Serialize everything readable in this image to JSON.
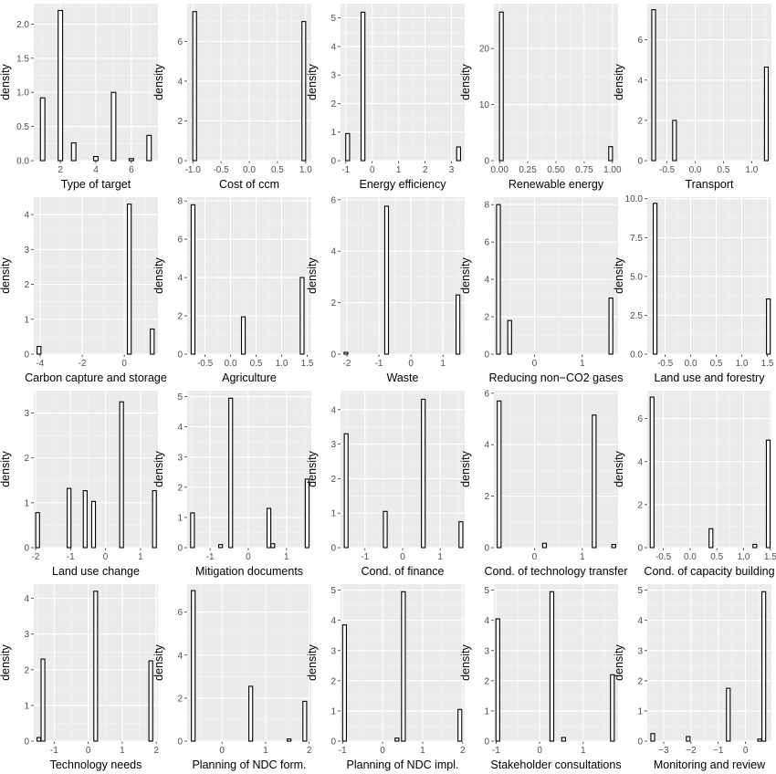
{
  "chart_data": [
    {
      "type": "bar",
      "xlabel": "Type of target",
      "ylabel": "density",
      "xlim": [
        0.5,
        7.5
      ],
      "ylim": [
        0,
        2.3
      ],
      "xticks": [
        2,
        4,
        6
      ],
      "xtick_labels": [
        "2",
        "4",
        "6"
      ],
      "yticks": [
        0,
        0.5,
        1,
        1.5,
        2
      ],
      "ytick_labels": [
        "0.0",
        "0.5",
        "1.0",
        "1.5",
        "2.0"
      ],
      "bar_width": 0.25,
      "x": [
        1,
        2,
        2.75,
        4,
        5,
        6,
        7
      ],
      "values": [
        0.92,
        2.2,
        0.26,
        0.06,
        1.0,
        0.03,
        0.37
      ]
    },
    {
      "type": "bar",
      "xlabel": "Cost of ccm",
      "ylabel": "density",
      "xlim": [
        -1.1,
        1.1
      ],
      "ylim": [
        0,
        7.9
      ],
      "xticks": [
        -1,
        -0.5,
        0,
        0.5,
        1
      ],
      "xtick_labels": [
        "-1.0",
        "-0.5",
        "0.0",
        "0.5",
        "1.0"
      ],
      "yticks": [
        0,
        2,
        4,
        6
      ],
      "ytick_labels": [
        "0",
        "2",
        "4",
        "6"
      ],
      "bar_width": 0.066,
      "x": [
        -0.967,
        0.967
      ],
      "values": [
        7.5,
        7.0
      ]
    },
    {
      "type": "bar",
      "xlabel": "Energy efficiency",
      "ylabel": "density",
      "xlim": [
        -1.2,
        3.5
      ],
      "ylim": [
        0,
        5.5
      ],
      "xticks": [
        -1,
        0,
        1,
        2,
        3
      ],
      "xtick_labels": [
        "-1",
        "0",
        "1",
        "2",
        "3"
      ],
      "yticks": [
        0,
        1,
        2,
        3,
        4,
        5
      ],
      "ytick_labels": [
        "0",
        "1",
        "2",
        "3",
        "4",
        "5"
      ],
      "bar_width": 0.145,
      "x": [
        -0.93,
        -0.35,
        3.27
      ],
      "values": [
        0.95,
        5.2,
        0.48
      ]
    },
    {
      "type": "bar",
      "xlabel": "Renewable energy",
      "ylabel": "density",
      "xlim": [
        -0.05,
        1.05
      ],
      "ylim": [
        0,
        28
      ],
      "xticks": [
        0,
        0.25,
        0.5,
        0.75,
        1
      ],
      "xtick_labels": [
        "0.00",
        "0.25",
        "0.50",
        "0.75",
        "1.00"
      ],
      "yticks": [
        0,
        10,
        20
      ],
      "ytick_labels": [
        "0",
        "10",
        "20"
      ],
      "bar_width": 0.033,
      "x": [
        0.016,
        0.984
      ],
      "values": [
        26.5,
        2.5
      ]
    },
    {
      "type": "bar",
      "xlabel": "Transport",
      "ylabel": "density",
      "xlim": [
        -0.85,
        1.35
      ],
      "ylim": [
        0,
        7.8
      ],
      "xticks": [
        -0.5,
        0,
        0.5,
        1
      ],
      "xtick_labels": [
        "-0.5",
        "0.0",
        "0.5",
        "1.0"
      ],
      "yticks": [
        0,
        2,
        4,
        6
      ],
      "ytick_labels": [
        "0",
        "2",
        "4",
        "6"
      ],
      "bar_width": 0.066,
      "x": [
        -0.737,
        -0.367,
        1.26
      ],
      "values": [
        7.5,
        2.0,
        4.65
      ]
    },
    {
      "type": "bar",
      "xlabel": "Carbon capture and storage",
      "ylabel": "density",
      "xlim": [
        -4.3,
        1.6
      ],
      "ylim": [
        0,
        4.5
      ],
      "xticks": [
        -4,
        -2,
        0
      ],
      "xtick_labels": [
        "-4",
        "-2",
        "0"
      ],
      "yticks": [
        0,
        1,
        2,
        3,
        4
      ],
      "ytick_labels": [
        "0",
        "1",
        "2",
        "3",
        "4"
      ],
      "bar_width": 0.18,
      "x": [
        -4.05,
        0.24,
        1.33
      ],
      "values": [
        0.22,
        4.3,
        0.72
      ]
    },
    {
      "type": "bar",
      "xlabel": "Agriculture",
      "ylabel": "density",
      "xlim": [
        -0.85,
        1.58
      ],
      "ylim": [
        0,
        8.2
      ],
      "xticks": [
        -0.5,
        0,
        0.5,
        1,
        1.5
      ],
      "xtick_labels": [
        "-0.5",
        "0.0",
        "0.5",
        "1.0",
        "1.5"
      ],
      "yticks": [
        0,
        2,
        4,
        6,
        8
      ],
      "ytick_labels": [
        "0",
        "2",
        "4",
        "6",
        "8"
      ],
      "bar_width": 0.073,
      "x": [
        -0.735,
        0.25,
        1.4
      ],
      "values": [
        7.8,
        1.95,
        4.0
      ]
    },
    {
      "type": "bar",
      "xlabel": "Waste",
      "ylabel": "density",
      "xlim": [
        -2.2,
        1.68
      ],
      "ylim": [
        0,
        6.1
      ],
      "xticks": [
        -2,
        -1,
        0,
        1
      ],
      "xtick_labels": [
        "-2",
        "-1",
        "0",
        "1"
      ],
      "yticks": [
        0,
        2,
        4,
        6
      ],
      "ytick_labels": [
        "0",
        "2",
        "4",
        "6"
      ],
      "bar_width": 0.117,
      "x": [
        -2.03,
        -0.76,
        1.47
      ],
      "values": [
        0.07,
        5.75,
        2.3
      ]
    },
    {
      "type": "bar",
      "xlabel": "Reducing non−CO2 gases",
      "ylabel": "density",
      "xlim": [
        -0.85,
        1.75
      ],
      "ylim": [
        0,
        8.4
      ],
      "xticks": [
        0,
        1
      ],
      "xtick_labels": [
        "0",
        "1"
      ],
      "yticks": [
        0,
        2,
        4,
        6,
        8
      ],
      "ytick_labels": [
        "0",
        "2",
        "4",
        "6",
        "8"
      ],
      "bar_width": 0.079,
      "x": [
        -0.755,
        -0.52,
        1.6
      ],
      "values": [
        8.0,
        1.8,
        3.0
      ]
    },
    {
      "type": "bar",
      "xlabel": "Land use and forestry",
      "ylabel": "density",
      "xlim": [
        -0.85,
        1.58
      ],
      "ylim": [
        0,
        10.1
      ],
      "xticks": [
        -0.5,
        0,
        0.5,
        1,
        1.5
      ],
      "xtick_labels": [
        "-0.5",
        "0.0",
        "0.5",
        "1.0",
        "1.5"
      ],
      "yticks": [
        0,
        2.5,
        5,
        7.5,
        10
      ],
      "ytick_labels": [
        "0.0",
        "2.5",
        "5.0",
        "7.5",
        "10.0"
      ],
      "bar_width": 0.073,
      "x": [
        -0.697,
        1.52
      ],
      "values": [
        9.7,
        3.55
      ]
    },
    {
      "type": "bar",
      "xlabel": "Land use change",
      "ylabel": "density",
      "xlim": [
        -2.05,
        1.5
      ],
      "ylim": [
        0,
        3.5
      ],
      "xticks": [
        -2,
        -1,
        0,
        1
      ],
      "xtick_labels": [
        "-2",
        "-1",
        "0",
        "1"
      ],
      "yticks": [
        0,
        1,
        2,
        3
      ],
      "ytick_labels": [
        "0",
        "1",
        "2",
        "3"
      ],
      "bar_width": 0.107,
      "x": [
        -1.94,
        -1.04,
        -0.58,
        -0.34,
        0.46,
        1.4
      ],
      "values": [
        0.78,
        1.32,
        1.27,
        1.03,
        3.25,
        1.27
      ]
    },
    {
      "type": "bar",
      "xlabel": "Mitigation documents",
      "ylabel": "density",
      "xlim": [
        -1.6,
        1.65
      ],
      "ylim": [
        0,
        5.2
      ],
      "xticks": [
        -1,
        0,
        1
      ],
      "xtick_labels": [
        "-1",
        "0",
        "1"
      ],
      "yticks": [
        0,
        1,
        2,
        3,
        4,
        5
      ],
      "ytick_labels": [
        "0",
        "1",
        "2",
        "3",
        "4",
        "5"
      ],
      "bar_width": 0.098,
      "x": [
        -1.46,
        -0.725,
        -0.46,
        0.54,
        0.64,
        1.54
      ],
      "values": [
        1.15,
        0.1,
        4.95,
        1.3,
        0.13,
        2.27
      ]
    },
    {
      "type": "bar",
      "xlabel": "Cond. of finance",
      "ylabel": "density",
      "xlim": [
        -1.65,
        1.65
      ],
      "ylim": [
        0,
        4.55
      ],
      "xticks": [
        -1,
        0,
        1
      ],
      "xtick_labels": [
        "-1",
        "0",
        "1"
      ],
      "yticks": [
        0,
        1,
        2,
        3,
        4
      ],
      "ytick_labels": [
        "0",
        "1",
        "2",
        "3",
        "4"
      ],
      "bar_width": 0.1,
      "x": [
        -1.5,
        -0.46,
        0.55,
        1.55
      ],
      "values": [
        3.3,
        1.05,
        4.3,
        0.75
      ]
    },
    {
      "type": "bar",
      "xlabel": "Cond. of technology transfer",
      "ylabel": "density",
      "xlim": [
        -0.85,
        1.75
      ],
      "ylim": [
        0,
        6.1
      ],
      "xticks": [
        0,
        1
      ],
      "xtick_labels": [
        "0",
        "1"
      ],
      "yticks": [
        0,
        2,
        4,
        6
      ],
      "ytick_labels": [
        "0",
        "2",
        "4",
        "6"
      ],
      "bar_width": 0.079,
      "x": [
        -0.74,
        0.21,
        1.25,
        1.66
      ],
      "values": [
        5.7,
        0.17,
        5.15,
        0.12
      ]
    },
    {
      "type": "bar",
      "xlabel": "Cond. of capacity building",
      "ylabel": "density",
      "xlim": [
        -0.8,
        1.52
      ],
      "ylim": [
        0,
        7.3
      ],
      "xticks": [
        -0.5,
        0,
        0.5,
        1,
        1.5
      ],
      "xtick_labels": [
        "-0.5",
        "0.0",
        "0.5",
        "1.0",
        "1.5"
      ],
      "yticks": [
        0,
        2,
        4,
        6
      ],
      "ytick_labels": [
        "0",
        "2",
        "4",
        "6"
      ],
      "bar_width": 0.07,
      "x": [
        -0.71,
        0.39,
        1.21,
        1.46
      ],
      "values": [
        7.0,
        0.88,
        0.15,
        5.0
      ]
    },
    {
      "type": "bar",
      "xlabel": "Technology needs",
      "ylabel": "density",
      "xlim": [
        -1.6,
        2.05
      ],
      "ylim": [
        0,
        4.4
      ],
      "xticks": [
        -1,
        0,
        1,
        2
      ],
      "xtick_labels": [
        "-1",
        "0",
        "1",
        "2"
      ],
      "yticks": [
        0,
        1,
        2,
        3,
        4
      ],
      "ytick_labels": [
        "0",
        "1",
        "2",
        "3",
        "4"
      ],
      "bar_width": 0.11,
      "x": [
        -1.45,
        -1.33,
        0.22,
        1.84
      ],
      "values": [
        0.1,
        2.3,
        4.2,
        2.25
      ]
    },
    {
      "type": "bar",
      "xlabel": "Planning of NDC form.",
      "ylabel": "density",
      "xlim": [
        -0.8,
        2.05
      ],
      "ylim": [
        0,
        7.3
      ],
      "xticks": [
        0,
        1,
        2
      ],
      "xtick_labels": [
        "0",
        "1",
        "2"
      ],
      "yticks": [
        0,
        2,
        4,
        6
      ],
      "ytick_labels": [
        "0",
        "2",
        "4",
        "6"
      ],
      "bar_width": 0.086,
      "x": [
        -0.66,
        0.66,
        1.54,
        1.9
      ],
      "values": [
        7.0,
        2.55,
        0.1,
        1.85
      ]
    },
    {
      "type": "bar",
      "xlabel": "Planning of NDC impl.",
      "ylabel": "density",
      "xlim": [
        -1.05,
        2.05
      ],
      "ylim": [
        0,
        5.2
      ],
      "xticks": [
        -1,
        0,
        1,
        2
      ],
      "xtick_labels": [
        "-1",
        "0",
        "1",
        "2"
      ],
      "yticks": [
        0,
        1,
        2,
        3,
        4,
        5
      ],
      "ytick_labels": [
        "0",
        "1",
        "2",
        "3",
        "4",
        "5"
      ],
      "bar_width": 0.094,
      "x": [
        -0.95,
        0.36,
        0.52,
        1.93
      ],
      "values": [
        3.85,
        0.1,
        4.95,
        1.05
      ]
    },
    {
      "type": "bar",
      "xlabel": "Stakeholder consultations",
      "ylabel": "density",
      "xlim": [
        -1.05,
        1.8
      ],
      "ylim": [
        0,
        5.2
      ],
      "xticks": [
        -1,
        0,
        1
      ],
      "xtick_labels": [
        "-1",
        "0",
        "1"
      ],
      "yticks": [
        0,
        1,
        2,
        3,
        4,
        5
      ],
      "ytick_labels": [
        "0",
        "1",
        "2",
        "3",
        "4",
        "5"
      ],
      "bar_width": 0.086,
      "x": [
        -0.96,
        0.28,
        0.55,
        1.67
      ],
      "values": [
        4.05,
        4.95,
        0.12,
        2.2
      ]
    },
    {
      "type": "bar",
      "xlabel": "Monitoring and review",
      "ylabel": "density",
      "xlim": [
        -3.6,
        0.95
      ],
      "ylim": [
        0,
        5.2
      ],
      "xticks": [
        -3,
        -2,
        -1,
        0
      ],
      "xtick_labels": [
        "−3",
        "−2",
        "−1",
        "0"
      ],
      "yticks": [
        0,
        1,
        2,
        3,
        4,
        5
      ],
      "ytick_labels": [
        "0",
        "1",
        "2",
        "3",
        "4",
        "5"
      ],
      "bar_width": 0.137,
      "x": [
        -3.4,
        -2.1,
        -0.63,
        0.52,
        0.67
      ],
      "values": [
        0.25,
        0.15,
        1.75,
        0.07,
        4.95
      ]
    }
  ]
}
